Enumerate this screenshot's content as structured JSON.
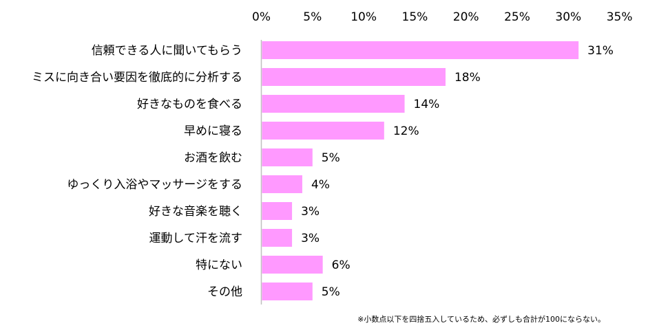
{
  "chart_data": {
    "type": "bar",
    "orientation": "horizontal",
    "categories": [
      "信頼できる人に聞いてもらう",
      "ミスに向き合い要因を徹底的に分析する",
      "好きなものを食べる",
      "早めに寝る",
      "お酒を飲む",
      "ゆっくり入浴やマッサージをする",
      "好きな音楽を聴く",
      "運動して汗を流す",
      "特にない",
      "その他"
    ],
    "values": [
      31,
      18,
      14,
      12,
      5,
      4,
      3,
      3,
      6,
      5
    ],
    "value_labels": [
      "31%",
      "18%",
      "14%",
      "12%",
      "5%",
      "4%",
      "3%",
      "3%",
      "6%",
      "5%"
    ],
    "x_ticks": [
      0,
      5,
      10,
      15,
      20,
      25,
      30,
      35
    ],
    "x_tick_labels": [
      "0%",
      "5%",
      "10%",
      "15%",
      "20%",
      "25%",
      "30%",
      "35%"
    ],
    "xlim": [
      0,
      35
    ],
    "x_axis_position": "top",
    "grid": false,
    "legend": "none",
    "bar_color": "#FF99FF",
    "axis_color": "#BFBFBF",
    "title": "",
    "xlabel": "",
    "ylabel": ""
  },
  "footnote": "※小数点以下を四捨五入しているため、必ずしも合計が100にならない。"
}
